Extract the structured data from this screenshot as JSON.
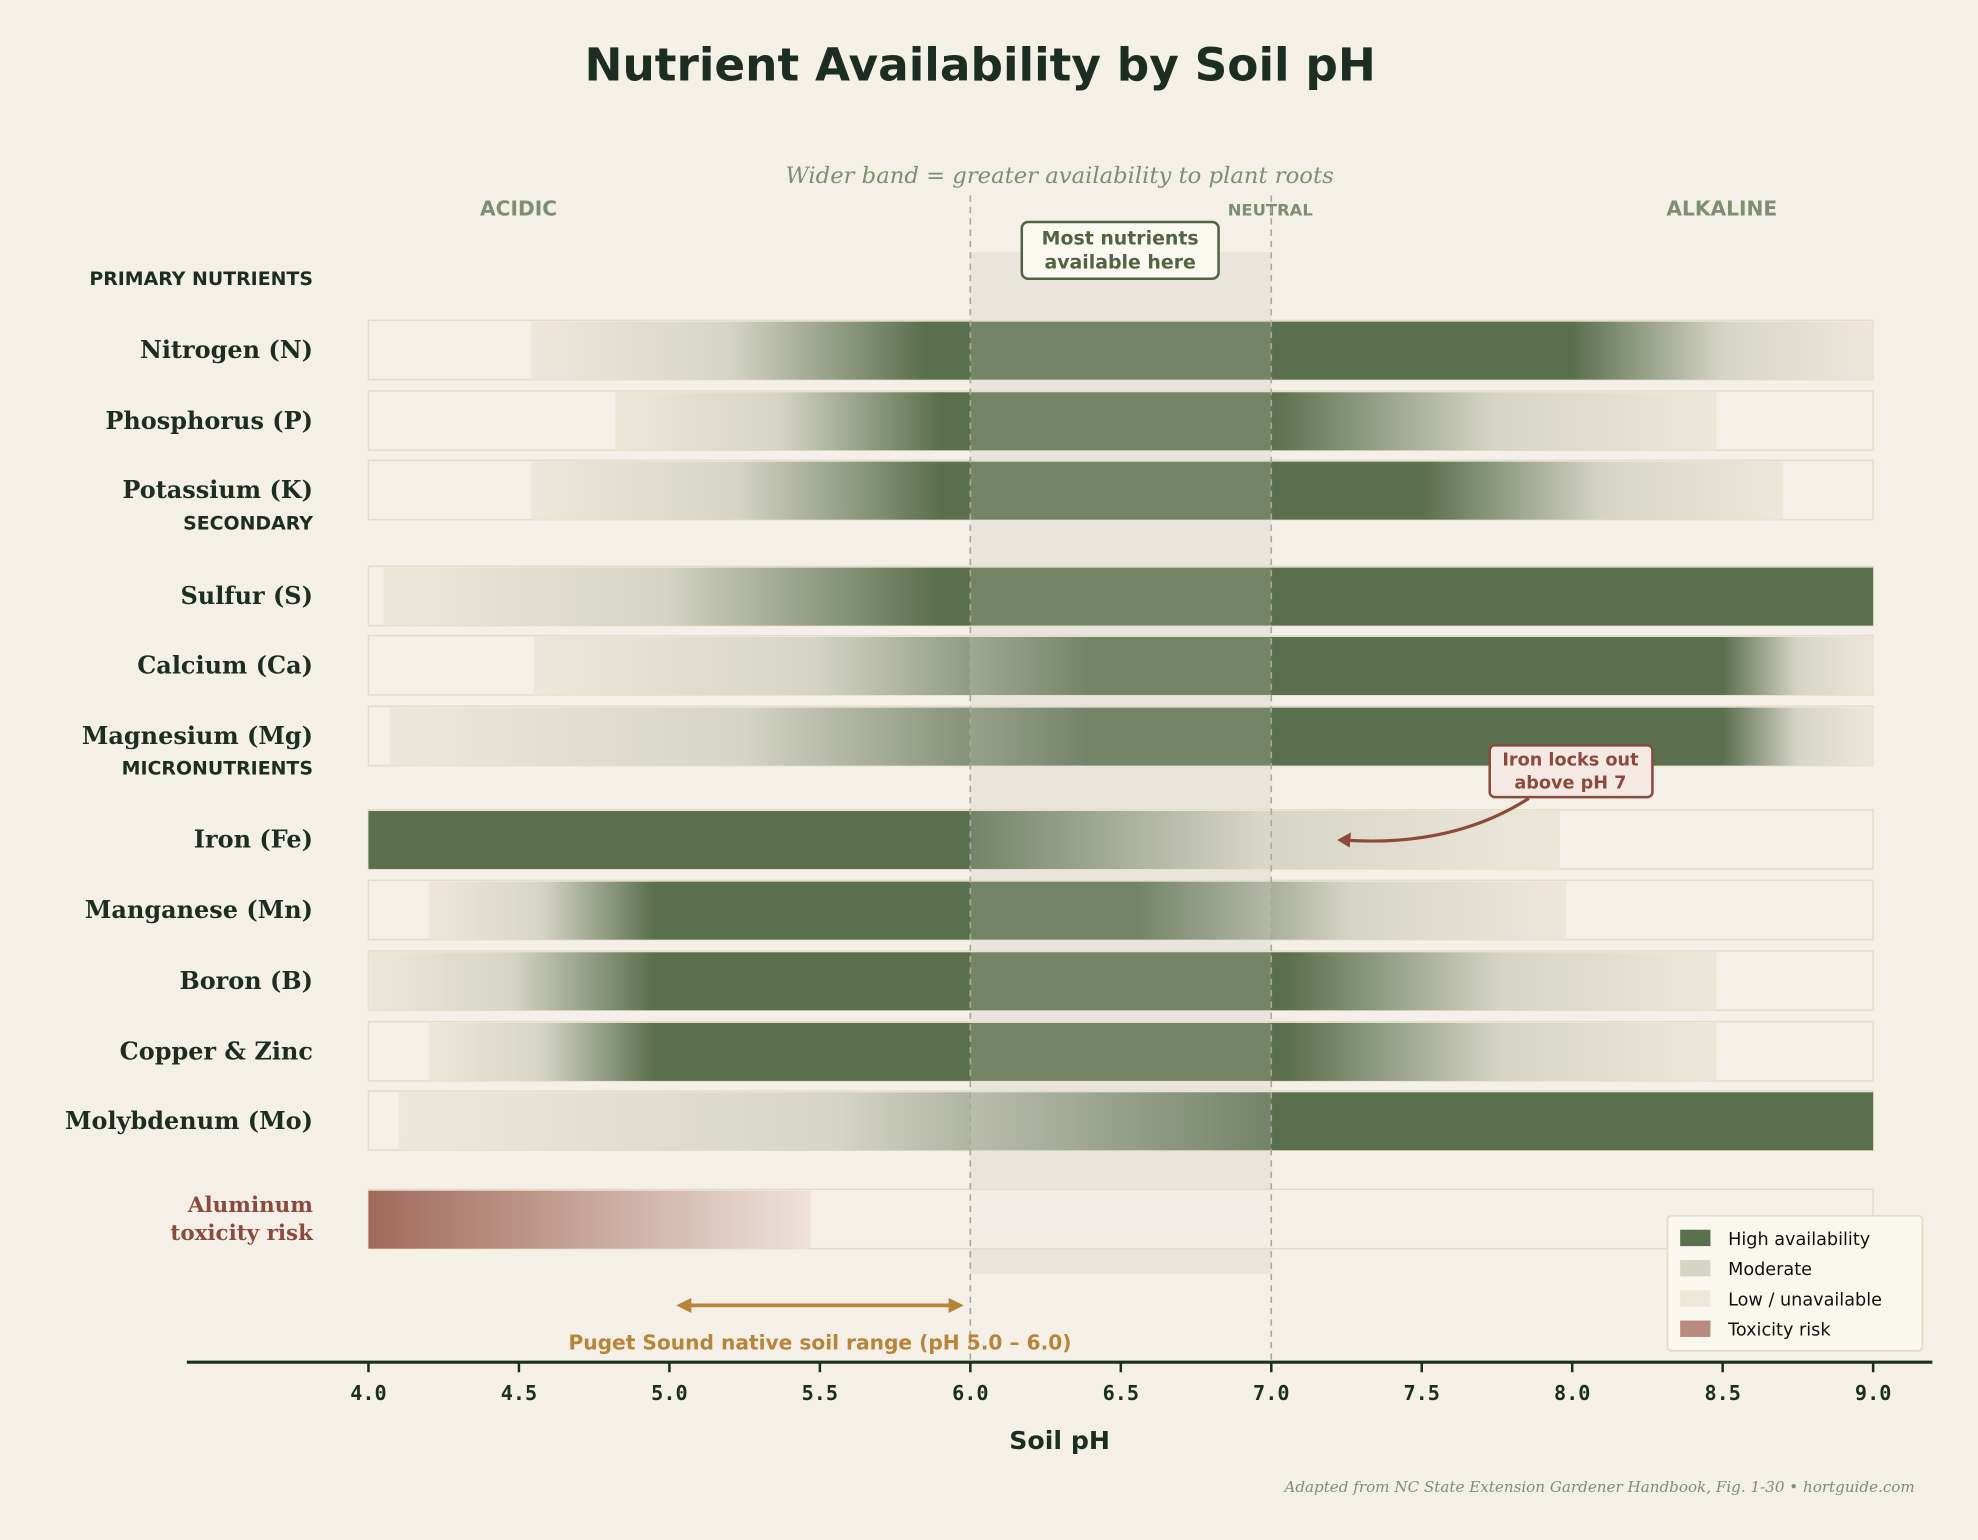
{
  "title": "Nutrient Availability by Soil pH",
  "subtitle": "Wider band = greater availability to plant roots",
  "regions": {
    "acidic": "ACIDIC",
    "neutral": "NEUTRAL",
    "alkaline": "ALKALINE"
  },
  "sections": {
    "primary": "PRIMARY NUTRIENTS",
    "secondary": "SECONDARY",
    "micro": "MICRONUTRIENTS"
  },
  "annotations": {
    "neutral_zone": [
      "Most nutrients",
      "available here"
    ],
    "iron": [
      "Iron locks out",
      "above pH 7"
    ],
    "puget": "Puget Sound native soil range (pH 5.0 – 6.0)"
  },
  "colors": {
    "high": "#5a6f4e",
    "moderate": "#d6d5c5",
    "low": "#ede7da",
    "toxicity": "#a0695a",
    "puget": "#b8843a",
    "iron_note": "#8b4a3c"
  },
  "legend": [
    {
      "label": "High availability",
      "color": "#5a6f4e"
    },
    {
      "label": "Moderate",
      "color": "#d6d5c5"
    },
    {
      "label": "Low / unavailable",
      "color": "#ede7da"
    },
    {
      "label": "Toxicity risk",
      "color": "#b88b7e"
    }
  ],
  "footer": "Adapted from NC State Extension Gardener Handbook, Fig. 1-30  •  hortguide.com",
  "chart_data": {
    "type": "heatmap",
    "title": "Nutrient Availability by Soil pH",
    "xlabel": "Soil pH",
    "xlim": [
      4.0,
      9.0
    ],
    "xticks": [
      "4.0",
      "4.5",
      "5.0",
      "5.5",
      "6.0",
      "6.5",
      "7.0",
      "7.5",
      "8.0",
      "8.5",
      "9.0"
    ],
    "neutral_zone": [
      6.0,
      7.0
    ],
    "puget_range": [
      5.0,
      6.0
    ],
    "legend_position": "bottom-right",
    "series": [
      {
        "name": "Nitrogen (N)",
        "group": "primary",
        "profile": [
          [
            4.54,
            0
          ],
          [
            5.85,
            1
          ],
          [
            8.0,
            1
          ],
          [
            9.0,
            0
          ]
        ]
      },
      {
        "name": "Phosphorus (P)",
        "group": "primary",
        "profile": [
          [
            4.82,
            0
          ],
          [
            5.9,
            1
          ],
          [
            7.0,
            1
          ],
          [
            8.48,
            0
          ]
        ]
      },
      {
        "name": "Potassium (K)",
        "group": "primary",
        "profile": [
          [
            4.54,
            0
          ],
          [
            5.9,
            1
          ],
          [
            7.5,
            1
          ],
          [
            8.7,
            0
          ]
        ]
      },
      {
        "name": "Sulfur (S)",
        "group": "secondary",
        "profile": [
          [
            4.05,
            0
          ],
          [
            5.9,
            1
          ],
          [
            9.0,
            1
          ]
        ]
      },
      {
        "name": "Calcium (Ca)",
        "group": "secondary",
        "profile": [
          [
            4.55,
            0
          ],
          [
            6.4,
            1
          ],
          [
            8.5,
            1
          ],
          [
            9.0,
            0
          ]
        ]
      },
      {
        "name": "Magnesium (Mg)",
        "group": "secondary",
        "profile": [
          [
            4.07,
            0
          ],
          [
            6.4,
            1
          ],
          [
            8.5,
            1
          ],
          [
            9.0,
            0
          ]
        ]
      },
      {
        "name": "Iron (Fe)",
        "group": "micro",
        "profile": [
          [
            4.0,
            1
          ],
          [
            6.0,
            1
          ],
          [
            7.96,
            0
          ]
        ]
      },
      {
        "name": "Manganese (Mn)",
        "group": "micro",
        "profile": [
          [
            4.2,
            0
          ],
          [
            4.95,
            1
          ],
          [
            6.55,
            1
          ],
          [
            7.98,
            0
          ]
        ]
      },
      {
        "name": "Boron (B)",
        "group": "micro",
        "profile": [
          [
            4.0,
            0
          ],
          [
            4.95,
            1
          ],
          [
            7.05,
            1
          ],
          [
            8.48,
            0
          ]
        ]
      },
      {
        "name": "Copper & Zinc",
        "group": "micro",
        "profile": [
          [
            4.2,
            0
          ],
          [
            4.95,
            1
          ],
          [
            7.05,
            1
          ],
          [
            8.48,
            0
          ]
        ]
      },
      {
        "name": "Molybdenum (Mo)",
        "group": "micro",
        "profile": [
          [
            4.1,
            0
          ],
          [
            7.0,
            1
          ],
          [
            9.0,
            1
          ]
        ]
      },
      {
        "name": "Aluminum toxicity risk",
        "label_lines": [
          "Aluminum",
          "toxicity risk"
        ],
        "group": "toxicity",
        "profile": [
          [
            4.0,
            1
          ],
          [
            5.47,
            0
          ]
        ]
      }
    ]
  }
}
